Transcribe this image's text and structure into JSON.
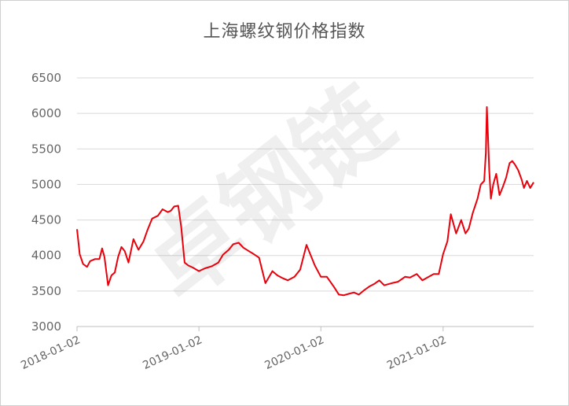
{
  "chart_data": {
    "type": "line",
    "title": "上海螺纹钢价格指数",
    "xlabel": "",
    "ylabel": "",
    "x_range": [
      "2018-01-02",
      "2021-09-30"
    ],
    "ylim": [
      3000,
      6500
    ],
    "y_ticks": [
      3000,
      3500,
      4000,
      4500,
      5000,
      5500,
      6000,
      6500
    ],
    "x_tick_labels": [
      "2018-01-02",
      "2019-01-02",
      "2020-01-02",
      "2021-01-02"
    ],
    "grid": "horizontal",
    "legend": "none",
    "line_color": "#e8000b",
    "watermark": "卓钢链",
    "series": [
      {
        "x": [
          "2018-01-02",
          "2018-01-10",
          "2018-01-20",
          "2018-02-01",
          "2018-02-10",
          "2018-02-25",
          "2018-03-10",
          "2018-03-18",
          "2018-03-25",
          "2018-04-05",
          "2018-04-15",
          "2018-04-25",
          "2018-05-05",
          "2018-05-15",
          "2018-05-25",
          "2018-06-05",
          "2018-06-20",
          "2018-07-05",
          "2018-07-20",
          "2018-08-01",
          "2018-08-15",
          "2018-09-01",
          "2018-09-15",
          "2018-10-01",
          "2018-10-10",
          "2018-10-20",
          "2018-11-01",
          "2018-11-10",
          "2018-11-20",
          "2018-12-01",
          "2018-12-15",
          "2019-01-02",
          "2019-01-20",
          "2019-02-10",
          "2019-03-01",
          "2019-03-15",
          "2019-04-01",
          "2019-04-15",
          "2019-05-01",
          "2019-05-15",
          "2019-06-01",
          "2019-06-15",
          "2019-07-01",
          "2019-07-20",
          "2019-08-10",
          "2019-08-25",
          "2019-09-10",
          "2019-09-25",
          "2019-10-15",
          "2019-11-01",
          "2019-11-20",
          "2019-12-01",
          "2019-12-15",
          "2020-01-02",
          "2020-01-20",
          "2020-02-10",
          "2020-02-25",
          "2020-03-10",
          "2020-03-25",
          "2020-04-10",
          "2020-04-25",
          "2020-05-10",
          "2020-05-25",
          "2020-06-10",
          "2020-06-25",
          "2020-07-10",
          "2020-08-01",
          "2020-08-20",
          "2020-09-10",
          "2020-09-25",
          "2020-10-15",
          "2020-11-01",
          "2020-11-20",
          "2020-12-05",
          "2020-12-20",
          "2021-01-02",
          "2021-01-15",
          "2021-01-25",
          "2021-02-10",
          "2021-02-25",
          "2021-03-10",
          "2021-03-20",
          "2021-04-01",
          "2021-04-15",
          "2021-04-25",
          "2021-05-05",
          "2021-05-10",
          "2021-05-13",
          "2021-05-17",
          "2021-05-20",
          "2021-05-25",
          "2021-06-01",
          "2021-06-10",
          "2021-06-20",
          "2021-07-01",
          "2021-07-10",
          "2021-07-20",
          "2021-07-28",
          "2021-08-05",
          "2021-08-15",
          "2021-08-25",
          "2021-09-01",
          "2021-09-10",
          "2021-09-20",
          "2021-09-30"
        ],
        "y": [
          4370,
          4020,
          3880,
          3840,
          3920,
          3950,
          3950,
          4100,
          3980,
          3580,
          3720,
          3760,
          3980,
          4120,
          4060,
          3900,
          4230,
          4080,
          4200,
          4360,
          4520,
          4560,
          4650,
          4610,
          4630,
          4690,
          4700,
          4400,
          3900,
          3860,
          3830,
          3780,
          3820,
          3850,
          3900,
          4010,
          4080,
          4160,
          4180,
          4110,
          4060,
          4020,
          3970,
          3610,
          3780,
          3720,
          3680,
          3650,
          3700,
          3800,
          4150,
          4020,
          3860,
          3700,
          3700,
          3560,
          3450,
          3440,
          3460,
          3480,
          3450,
          3510,
          3560,
          3600,
          3650,
          3580,
          3610,
          3630,
          3700,
          3690,
          3740,
          3650,
          3700,
          3740,
          3740,
          4020,
          4200,
          4580,
          4310,
          4500,
          4310,
          4380,
          4600,
          4800,
          5000,
          5050,
          5450,
          6090,
          5600,
          5200,
          4800,
          5000,
          5150,
          4850,
          4980,
          5100,
          5300,
          5330,
          5280,
          5200,
          5070,
          4950,
          5050,
          4950,
          5030
        ]
      }
    ]
  }
}
